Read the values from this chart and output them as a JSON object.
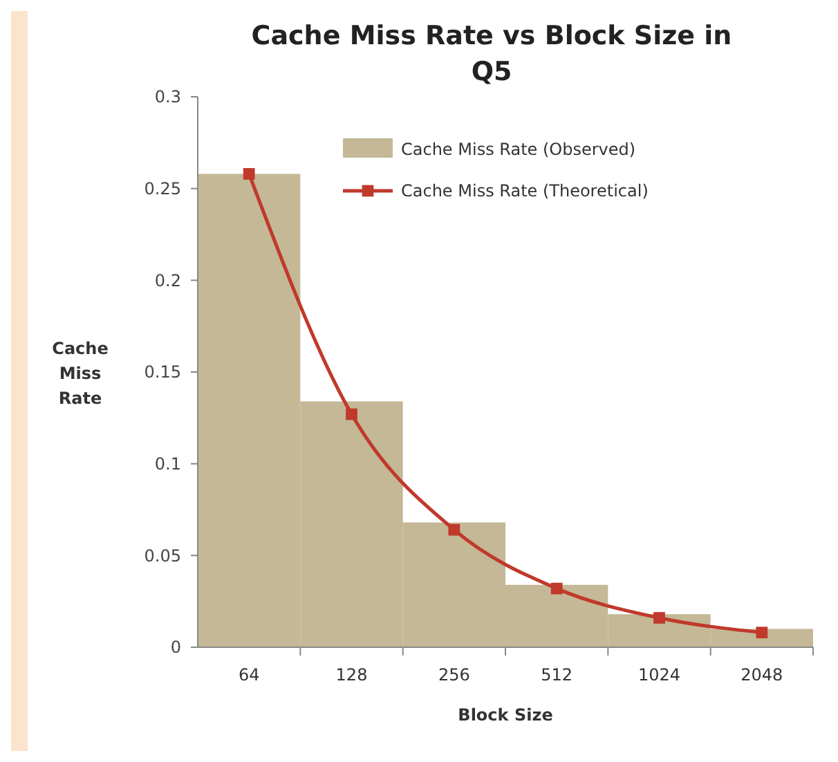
{
  "chart_data": {
    "type": "bar",
    "title": "Cache Miss Rate vs Block Size in Q5",
    "xlabel": "Block Size",
    "ylabel": "Cache Miss Rate",
    "categories": [
      "64",
      "128",
      "256",
      "512",
      "1024",
      "2048"
    ],
    "series": [
      {
        "name": "Cache Miss Rate (Observed)",
        "color": "#c4b896",
        "values": [
          0.258,
          0.134,
          0.068,
          0.034,
          0.018,
          0.01
        ]
      },
      {
        "name": "Cache Miss Rate (Theoretical)",
        "type": "line",
        "color": "#c0392b",
        "values": [
          0.258,
          0.127,
          0.064,
          0.032,
          0.016,
          0.008
        ]
      }
    ],
    "ylim": [
      0,
      0.3
    ],
    "yticks": [
      0,
      0.05,
      0.1,
      0.15,
      0.2,
      0.25,
      0.3
    ],
    "grid": false,
    "legend": "top right",
    "marker": "square",
    "line_style": "solid"
  }
}
